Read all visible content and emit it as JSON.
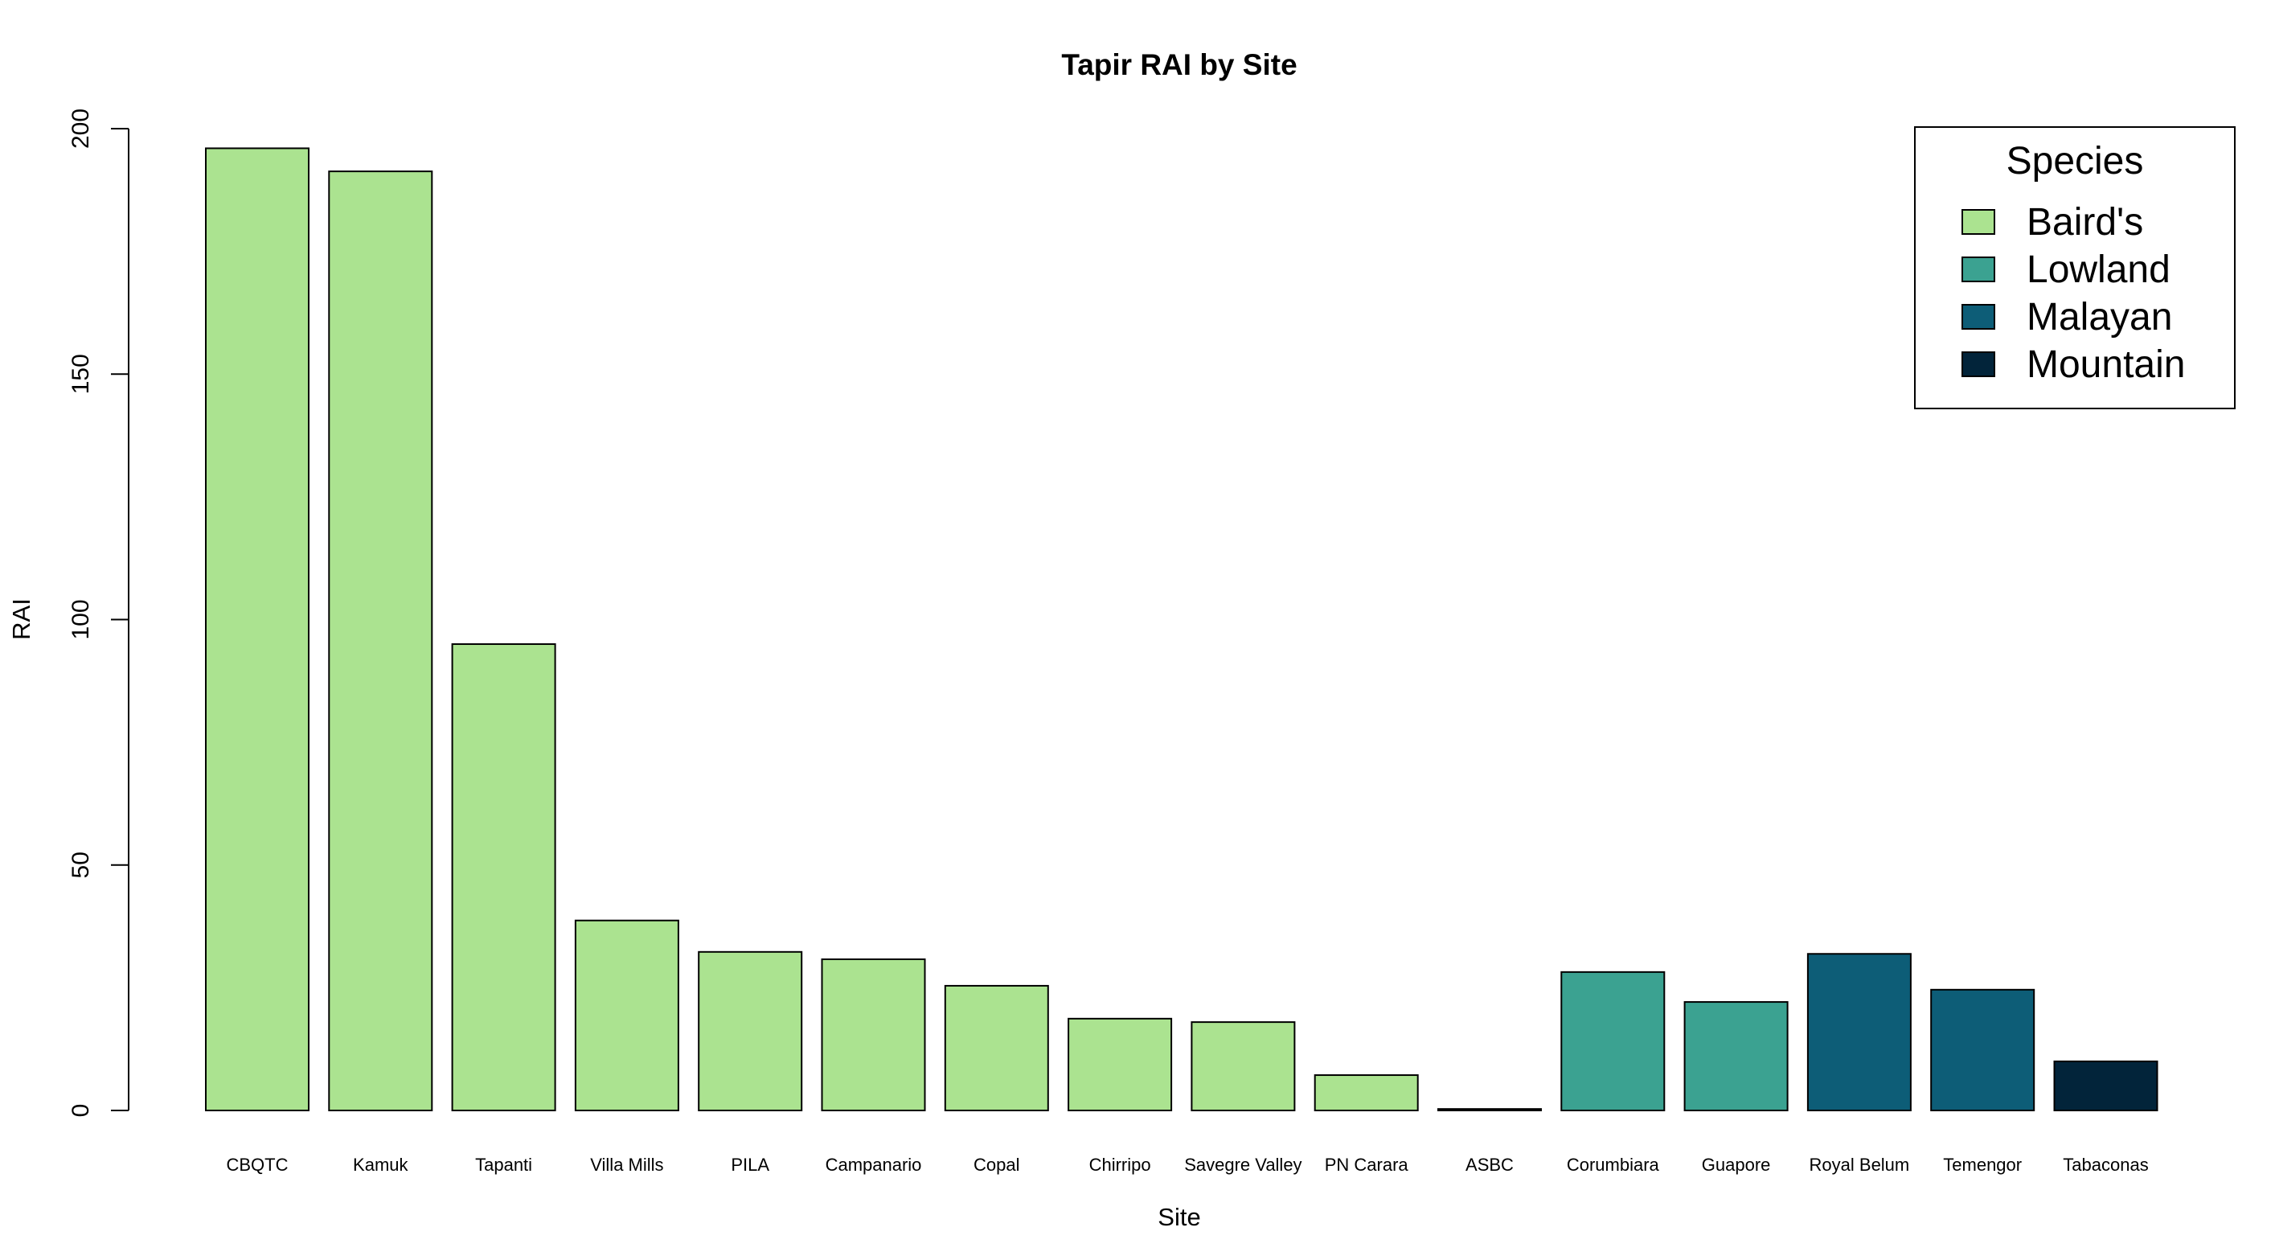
{
  "chart_data": {
    "type": "bar",
    "title": "Tapir RAI by Site",
    "xlabel": "Site",
    "ylabel": "RAI",
    "ylim": [
      0,
      200
    ],
    "yticks": [
      0,
      50,
      100,
      150,
      200
    ],
    "grid": false,
    "legend_position": "top-right",
    "legend": {
      "title": "Species",
      "entries": [
        {
          "name": "Baird's",
          "color": "#abe390"
        },
        {
          "name": "Lowland",
          "color": "#3ba291"
        },
        {
          "name": "Malayan",
          "color": "#0d5d77"
        },
        {
          "name": "Mountain",
          "color": "#02243a"
        }
      ]
    },
    "bars": [
      {
        "category": "CBQTC",
        "value": 196,
        "species": "Baird's"
      },
      {
        "category": "Kamuk",
        "value": 191.3,
        "species": "Baird's"
      },
      {
        "category": "Tapanti",
        "value": 95,
        "species": "Baird's"
      },
      {
        "category": "Villa Mills",
        "value": 38.7,
        "species": "Baird's"
      },
      {
        "category": "PILA",
        "value": 32.3,
        "species": "Baird's"
      },
      {
        "category": "Campanario",
        "value": 30.8,
        "species": "Baird's"
      },
      {
        "category": "Copal",
        "value": 25.4,
        "species": "Baird's"
      },
      {
        "category": "Chirripo",
        "value": 18.7,
        "species": "Baird's"
      },
      {
        "category": "Savegre Valley",
        "value": 18,
        "species": "Baird's"
      },
      {
        "category": "PN Carara",
        "value": 7.2,
        "species": "Baird's"
      },
      {
        "category": "ASBC",
        "value": 0.3,
        "species": "Mountain"
      },
      {
        "category": "Corumbiara",
        "value": 28.2,
        "species": "Lowland"
      },
      {
        "category": "Guapore",
        "value": 22.1,
        "species": "Lowland"
      },
      {
        "category": "Royal Belum",
        "value": 31.9,
        "species": "Malayan"
      },
      {
        "category": "Temengor",
        "value": 24.6,
        "species": "Malayan"
      },
      {
        "category": "Tabaconas",
        "value": 10,
        "species": "Mountain"
      }
    ]
  }
}
